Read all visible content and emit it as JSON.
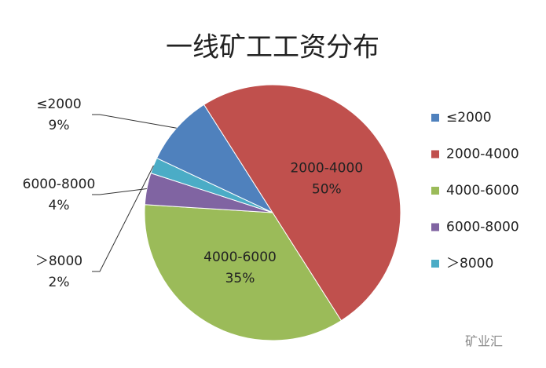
{
  "chart_data": {
    "type": "pie",
    "title": "一线矿工工资分布",
    "categories": [
      "≤2000",
      "2000-4000",
      "4000-6000",
      "6000-8000",
      "＞8000"
    ],
    "values": [
      9,
      50,
      35,
      4,
      2
    ],
    "value_labels": [
      "9%",
      "50%",
      "35%",
      "4%",
      "2%"
    ],
    "colors": [
      "#4f81bd",
      "#c0504d",
      "#9bbb59",
      "#8064a2",
      "#4bacc6"
    ],
    "legend": "right"
  },
  "watermark": "矿业汇"
}
